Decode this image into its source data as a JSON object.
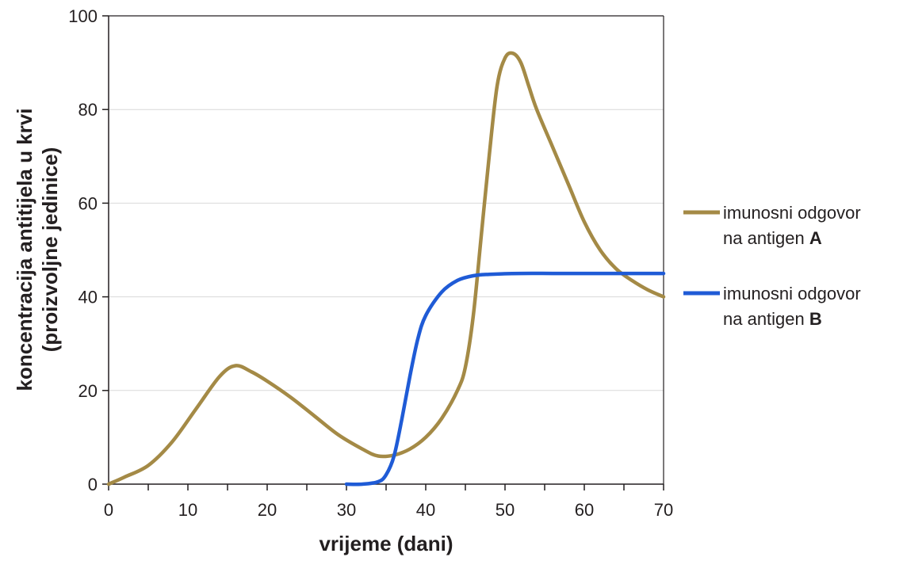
{
  "chart_data": {
    "type": "line",
    "title": "",
    "xlabel": "vrijeme (dani)",
    "ylabel_lines": [
      "koncentracija antitijela u krvi",
      "(proizvoljne jedinice)"
    ],
    "xlim": [
      0,
      70
    ],
    "ylim": [
      0,
      100
    ],
    "xticks": [
      0,
      10,
      20,
      30,
      40,
      50,
      60,
      70
    ],
    "yticks": [
      0,
      20,
      40,
      60,
      80,
      100
    ],
    "grid": "horizontal",
    "legend_position": "right",
    "series": [
      {
        "name_line1": "imunosni odgovor",
        "name_line2_prefix": "na antigen ",
        "name_line2_bold": "A",
        "color": "#a48a46",
        "points": [
          [
            0,
            0
          ],
          [
            2,
            1.5
          ],
          [
            5,
            4
          ],
          [
            8,
            9
          ],
          [
            11,
            16
          ],
          [
            14,
            23
          ],
          [
            16,
            25.3
          ],
          [
            18,
            24
          ],
          [
            20,
            22
          ],
          [
            23,
            18.5
          ],
          [
            26,
            14.5
          ],
          [
            29,
            10.5
          ],
          [
            32,
            7.5
          ],
          [
            34,
            6
          ],
          [
            36,
            6.2
          ],
          [
            38,
            7.5
          ],
          [
            40,
            10
          ],
          [
            42,
            14
          ],
          [
            44,
            20
          ],
          [
            45,
            25
          ],
          [
            46,
            36
          ],
          [
            47,
            53
          ],
          [
            48,
            70
          ],
          [
            49,
            85
          ],
          [
            50,
            91
          ],
          [
            51,
            92
          ],
          [
            52,
            90
          ],
          [
            53,
            85
          ],
          [
            54,
            80
          ],
          [
            56,
            72
          ],
          [
            58,
            64
          ],
          [
            60,
            56
          ],
          [
            62,
            50
          ],
          [
            64,
            46
          ],
          [
            66,
            43.5
          ],
          [
            68,
            41.5
          ],
          [
            70,
            40
          ]
        ]
      },
      {
        "name_line1": "imunosni odgovor",
        "name_line2_prefix": "na antigen ",
        "name_line2_bold": "B",
        "color": "#1f5bd6",
        "points": [
          [
            30,
            0
          ],
          [
            32,
            0
          ],
          [
            34,
            0.5
          ],
          [
            35,
            2
          ],
          [
            36,
            6
          ],
          [
            37,
            14
          ],
          [
            38,
            23
          ],
          [
            39,
            31
          ],
          [
            40,
            36
          ],
          [
            42,
            41
          ],
          [
            44,
            43.5
          ],
          [
            46,
            44.5
          ],
          [
            48,
            44.8
          ],
          [
            52,
            45
          ],
          [
            56,
            45
          ],
          [
            60,
            45
          ],
          [
            65,
            45
          ],
          [
            70,
            45
          ]
        ]
      }
    ]
  }
}
